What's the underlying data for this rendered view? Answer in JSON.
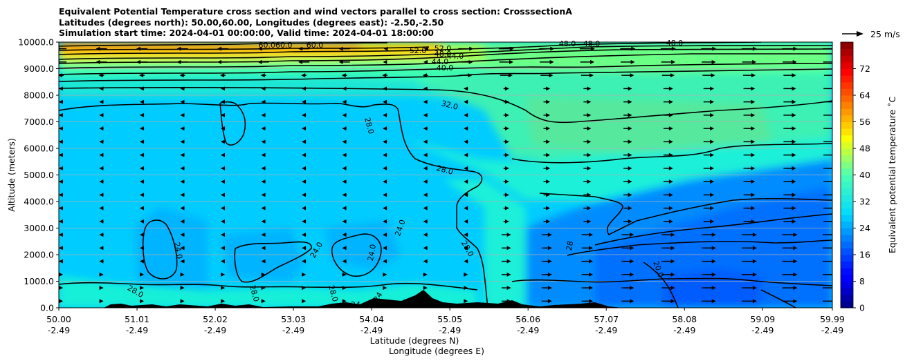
{
  "titles": {
    "line1": "Equivalent Potential Temperature cross section and wind vectors parallel to cross section: CrosssectionA",
    "line2": "Latitudes (degrees north): 50.00,60.00, Longitudes (degrees east): -2.50,-2.50",
    "line3": "Simulation start time: 2024-04-01 00:00:00, Valid time: 2024-04-01 18:00:00"
  },
  "quiver_key": {
    "label": "25 m/s"
  },
  "colorbar": {
    "label": "Equivalent potential temperature $^\\circ$C",
    "label_display": "Equivalent potential temperature ˚C",
    "ticks": [
      "0",
      "8",
      "16",
      "24",
      "32",
      "40",
      "48",
      "56",
      "64",
      "72"
    ],
    "range": [
      0,
      80
    ]
  },
  "chart_data": {
    "type": "heatmap",
    "xlabel": "Latitude (degrees N)",
    "xlabel2": "Longitude (degrees E)",
    "ylabel": "Altitude (meters)",
    "x_ticks_lat": [
      "50.00",
      "51.01",
      "52.02",
      "53.03",
      "54.04",
      "55.05",
      "56.06",
      "57.07",
      "58.08",
      "59.09",
      "59.99"
    ],
    "x_ticks_lon": [
      "-2.49",
      "-2.49",
      "-2.49",
      "-2.49",
      "-2.49",
      "-2.49",
      "-2.49",
      "-2.49",
      "-2.49",
      "-2.49",
      "-2.49"
    ],
    "xlim": [
      50.0,
      59.99
    ],
    "y_ticks": [
      "0.0",
      "1000.0",
      "2000.0",
      "3000.0",
      "4000.0",
      "5000.0",
      "6000.0",
      "7000.0",
      "8000.0",
      "9000.0",
      "10000.0"
    ],
    "ylim": [
      0,
      10000
    ],
    "grid": "horizontal",
    "contour_labels": [
      "60.060.0",
      "60.0",
      "52.0",
      "52.0",
      "48.0",
      "44.0",
      "44.0",
      "40.0",
      "48.0",
      "48.0",
      "48.0",
      "32.0",
      "28.0",
      "28.0",
      "24.0",
      "24.0",
      "24.0",
      "24.0",
      "28.0",
      "28.0",
      "28.0",
      "28.0",
      "20.0",
      "24",
      "24",
      "28"
    ],
    "wind_direction_note": "westward aloft and west of ~55.4N, eastward elsewhere"
  }
}
